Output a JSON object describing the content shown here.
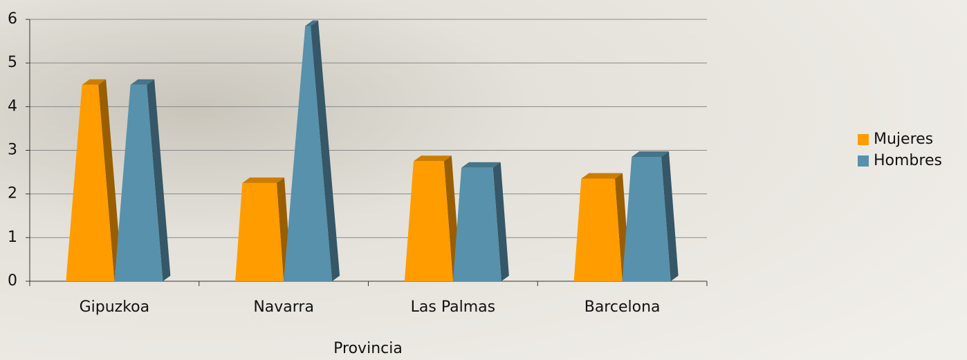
{
  "chart_data": {
    "type": "bar3d",
    "categories": [
      "Gipuzkoa",
      "Navarra",
      "Las Palmas",
      "Barcelona"
    ],
    "series": [
      {
        "name": "Mujeres",
        "color": "#ff9c00",
        "values": [
          4.5,
          2.25,
          2.75,
          2.35
        ]
      },
      {
        "name": "Hombres",
        "color": "#5891ab",
        "values": [
          4.5,
          5.85,
          2.6,
          2.85
        ]
      }
    ],
    "x_label": "Provincia",
    "ylim": [
      0,
      6
    ],
    "yticks": [
      0,
      1,
      2,
      3,
      4,
      5,
      6
    ],
    "grid": true,
    "legend": "right"
  }
}
